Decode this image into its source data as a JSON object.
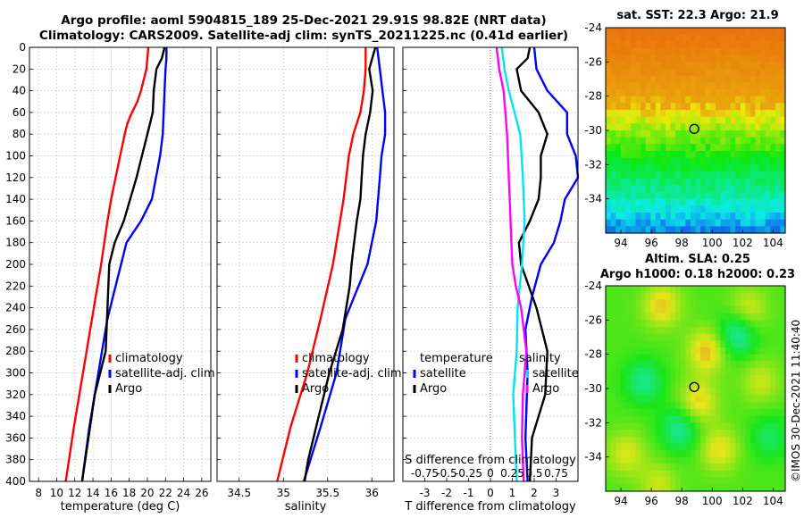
{
  "header": {
    "title_line1": "Argo profile: aoml 5904815_189 25-Dec-2021 29.91S 98.82E (NRT data)",
    "title_line2": "Climatology: CARS2009. Satellite-adj clim: synTS_20211225.nc (0.41d earlier)"
  },
  "colors": {
    "climatology": "#ff0000",
    "satellite": "#0000ff",
    "argo": "#000000",
    "s_diff_sat": "#00e5ee",
    "s_diff_argo": "#ff00ff"
  },
  "depth_ticks": [
    "0",
    "20",
    "40",
    "60",
    "80",
    "100",
    "120",
    "140",
    "160",
    "180",
    "200",
    "220",
    "240",
    "260",
    "280",
    "300",
    "320",
    "340",
    "360",
    "380",
    "400"
  ],
  "chart_data": [
    {
      "type": "line",
      "name": "temperature",
      "xlabel": "temperature (deg C)",
      "ylabel": "",
      "xlim": [
        7,
        27
      ],
      "ylim": [
        400,
        0
      ],
      "x_ticks": [
        "8",
        "10",
        "12",
        "14",
        "16",
        "18",
        "20",
        "22",
        "24",
        "26"
      ],
      "legend": [
        "climatology",
        "satellite-adj. clim",
        "Argo"
      ],
      "series": [
        {
          "name": "climatology",
          "depth": [
            0,
            20,
            40,
            50,
            60,
            70,
            80,
            100,
            120,
            140,
            160,
            200,
            250,
            300,
            350,
            400
          ],
          "values": [
            20.1,
            19.9,
            19.3,
            18.9,
            18.3,
            17.8,
            17.5,
            17.0,
            16.5,
            16.0,
            15.6,
            14.9,
            13.9,
            12.9,
            11.9,
            11.0
          ]
        },
        {
          "name": "satellite-adj. clim",
          "depth": [
            0,
            10,
            20,
            40,
            60,
            80,
            100,
            140,
            160,
            180,
            200,
            220,
            250,
            300,
            350,
            400
          ],
          "values": [
            22.1,
            22.1,
            22.0,
            21.9,
            21.8,
            21.7,
            21.4,
            20.5,
            19.3,
            17.7,
            17.1,
            16.5,
            15.6,
            14.6,
            13.6,
            12.8
          ]
        },
        {
          "name": "Argo",
          "depth": [
            0,
            10,
            20,
            40,
            60,
            80,
            100,
            120,
            140,
            160,
            180,
            200,
            240,
            280,
            320,
            360,
            400
          ],
          "values": [
            21.9,
            21.6,
            21.0,
            20.7,
            20.6,
            20.0,
            19.4,
            18.8,
            18.1,
            17.4,
            16.4,
            15.8,
            15.6,
            15.4,
            14.2,
            13.5,
            12.8
          ]
        }
      ]
    },
    {
      "type": "line",
      "name": "salinity",
      "xlabel": "salinity",
      "xlim": [
        34.25,
        36.25
      ],
      "ylim": [
        400,
        0
      ],
      "x_ticks": [
        "34.5",
        "35",
        "35.5",
        "36"
      ],
      "legend": [
        "climatology",
        "satellite-adj. clim",
        "Argo"
      ],
      "series": [
        {
          "name": "climatology",
          "depth": [
            0,
            20,
            40,
            60,
            80,
            100,
            140,
            200,
            250,
            300,
            350,
            400
          ],
          "values": [
            35.93,
            35.93,
            35.91,
            35.87,
            35.79,
            35.74,
            35.68,
            35.56,
            35.42,
            35.27,
            35.08,
            34.93
          ]
        },
        {
          "name": "satellite-adj. clim",
          "depth": [
            0,
            20,
            40,
            60,
            80,
            100,
            120,
            160,
            200,
            230,
            250,
            300,
            350,
            400
          ],
          "values": [
            36.06,
            36.09,
            36.12,
            36.15,
            36.15,
            36.11,
            36.09,
            36.05,
            35.95,
            35.8,
            35.7,
            35.6,
            35.42,
            35.23
          ]
        },
        {
          "name": "Argo",
          "depth": [
            0,
            20,
            40,
            60,
            80,
            100,
            140,
            160,
            180,
            200,
            220,
            260,
            300,
            340,
            380,
            400
          ],
          "values": [
            36.04,
            35.97,
            36.01,
            35.98,
            35.93,
            35.9,
            35.87,
            35.83,
            35.8,
            35.77,
            35.75,
            35.67,
            35.52,
            35.4,
            35.28,
            35.24
          ]
        }
      ]
    },
    {
      "type": "line",
      "name": "differences",
      "xlabel": "T difference from climatology",
      "xlabel_top": "S difference from climatology",
      "xlim": [
        -4,
        4
      ],
      "ylim": [
        400,
        0
      ],
      "x_ticks": [
        "-3",
        "-2",
        "-1",
        "0",
        "1",
        "2",
        "3"
      ],
      "x_ticks_top": [
        "-0.75",
        "-0.5",
        "-0.25",
        "0",
        "0.25",
        "0.5",
        "0.75"
      ],
      "legend_left_title": "temperature",
      "legend_left": [
        "satellite",
        "Argo"
      ],
      "legend_right_title": "salinity",
      "legend_right": [
        "satellite",
        "Argo"
      ],
      "series": [
        {
          "name": "T satellite",
          "depth": [
            0,
            20,
            40,
            60,
            80,
            100,
            120,
            140,
            160,
            180,
            200,
            230,
            260,
            300,
            360,
            400
          ],
          "values": [
            2.0,
            2.1,
            2.6,
            3.5,
            3.5,
            3.9,
            4.0,
            3.4,
            3.2,
            2.9,
            2.3,
            1.9,
            1.6,
            1.7,
            1.6,
            1.7
          ]
        },
        {
          "name": "T Argo",
          "depth": [
            0,
            10,
            20,
            40,
            60,
            80,
            100,
            120,
            140,
            160,
            180,
            200,
            240,
            280,
            320,
            360,
            400
          ],
          "values": [
            1.8,
            1.7,
            1.2,
            1.4,
            2.2,
            2.6,
            2.3,
            2.3,
            2.2,
            1.8,
            1.3,
            1.4,
            2.1,
            2.6,
            2.5,
            1.9,
            1.8
          ]
        },
        {
          "name": "S satellite",
          "depth": [
            0,
            20,
            40,
            80,
            120,
            160,
            200,
            240,
            280,
            320,
            360,
            400
          ],
          "values": [
            0.13,
            0.16,
            0.21,
            0.34,
            0.37,
            0.39,
            0.36,
            0.31,
            0.3,
            0.26,
            0.28,
            0.3
          ]
        },
        {
          "name": "S Argo",
          "depth": [
            0,
            20,
            40,
            60,
            80,
            120,
            160,
            200,
            220,
            240,
            280,
            320,
            360,
            400
          ],
          "values": [
            0.07,
            0.1,
            0.15,
            0.17,
            0.19,
            0.21,
            0.23,
            0.25,
            0.29,
            0.35,
            0.41,
            0.37,
            0.36,
            0.38
          ]
        }
      ]
    },
    {
      "type": "heatmap",
      "name": "sst_map",
      "title": "sat. SST: 22.3 Argo: 21.9",
      "x_ticks": [
        "94",
        "96",
        "98",
        "100",
        "102",
        "104"
      ],
      "y_ticks": [
        "-24",
        "-26",
        "-28",
        "-30",
        "-32",
        "-34"
      ],
      "xlim": [
        93,
        104.8
      ],
      "ylim": [
        -36,
        -24
      ],
      "marker": [
        98.82,
        -29.91
      ]
    },
    {
      "type": "heatmap",
      "name": "sla_map",
      "title_line1": "Altim. SLA: 0.25",
      "title_line2": "Argo h1000: 0.18 h2000: 0.23",
      "x_ticks": [
        "94",
        "96",
        "98",
        "100",
        "102",
        "104"
      ],
      "y_ticks": [
        "-24",
        "-26",
        "-28",
        "-30",
        "-32",
        "-34"
      ],
      "xlim": [
        93,
        104.8
      ],
      "ylim": [
        -36,
        -24
      ],
      "marker": [
        98.82,
        -29.91
      ]
    }
  ],
  "footer": {
    "credit": "©IMOS 30-Dec-2021 11:40:40"
  }
}
